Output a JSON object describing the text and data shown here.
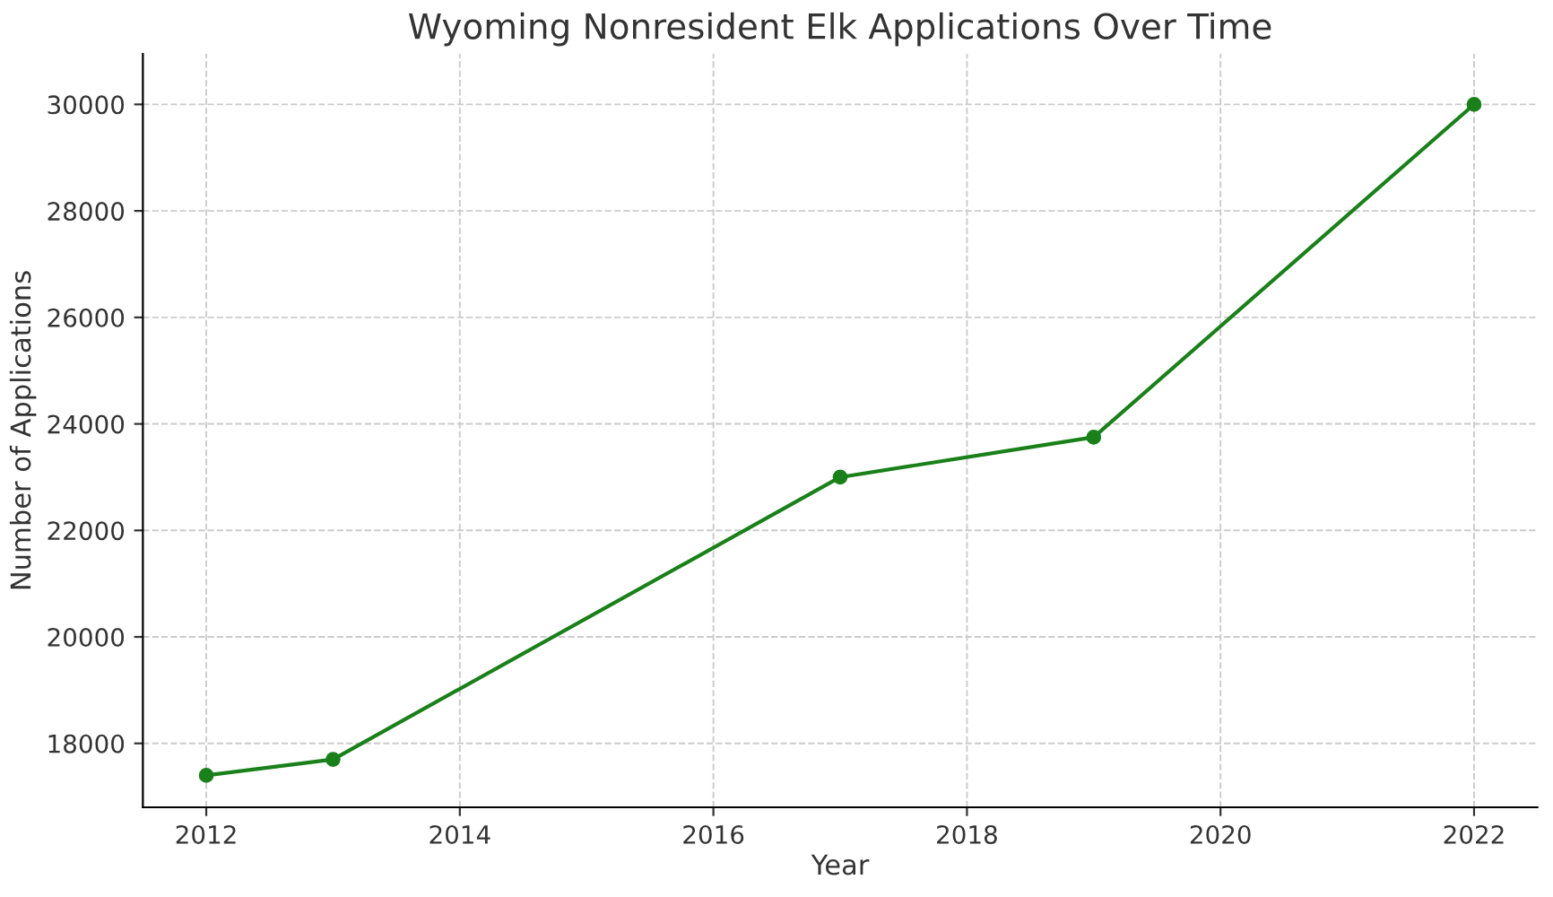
{
  "chart_data": {
    "type": "line",
    "title": "Wyoming Nonresident Elk Applications Over Time",
    "xlabel": "Year",
    "ylabel": "Number of Applications",
    "x": [
      2012,
      2013,
      2017,
      2019,
      2022
    ],
    "series": [
      {
        "color": "#1a801a",
        "values": [
          17400,
          17700,
          23000,
          23750,
          30000
        ]
      }
    ],
    "xlim": [
      2011.5,
      2022.5
    ],
    "xticks": [
      2012,
      2014,
      2016,
      2018,
      2020,
      2022
    ],
    "ylim": [
      16800,
      30950
    ],
    "yticks": [
      18000,
      20000,
      22000,
      24000,
      26000,
      28000,
      30000
    ],
    "grid": true,
    "marker": "circle",
    "line_style": "solid"
  }
}
